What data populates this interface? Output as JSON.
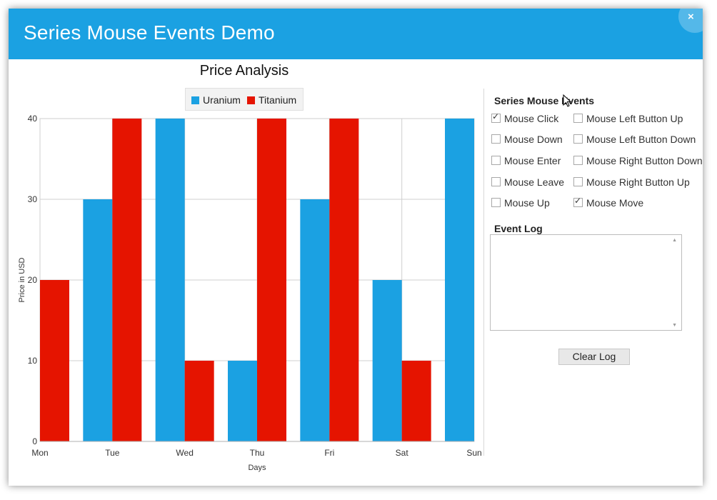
{
  "window": {
    "title": "Series Mouse Events Demo",
    "close_label": "×"
  },
  "chart_data": {
    "type": "bar",
    "title": "Price Analysis",
    "xlabel": "Days",
    "ylabel": "Price in USD",
    "categories": [
      "Mon",
      "Tue",
      "Wed",
      "Thu",
      "Fri",
      "Sat",
      "Sun"
    ],
    "series": [
      {
        "name": "Uranium",
        "color": "#1ba1e2",
        "values": [
          0,
          30,
          40,
          10,
          30,
          20,
          40
        ]
      },
      {
        "name": "Titanium",
        "color": "#e51400",
        "values": [
          20,
          40,
          10,
          40,
          40,
          10,
          0
        ]
      }
    ],
    "ylim": [
      0,
      40
    ],
    "yticks": [
      0,
      10,
      20,
      30,
      40
    ],
    "grid": true,
    "legend_position": "top"
  },
  "panel": {
    "events_label": "Series Mouse Events",
    "checkboxes": [
      {
        "label": "Mouse Click",
        "checked": true
      },
      {
        "label": "Mouse Down",
        "checked": false
      },
      {
        "label": "Mouse Enter",
        "checked": false
      },
      {
        "label": "Mouse Leave",
        "checked": false
      },
      {
        "label": "Mouse Up",
        "checked": false
      },
      {
        "label": "Mouse Left Button Up",
        "checked": false
      },
      {
        "label": "Mouse Left Button Down",
        "checked": false
      },
      {
        "label": "Mouse Right Button Down",
        "checked": false
      },
      {
        "label": "Mouse Right Button Up",
        "checked": false
      },
      {
        "label": "Mouse Move",
        "checked": true
      }
    ],
    "log_label": "Event Log",
    "log_text": "",
    "clear_label": "Clear Log"
  }
}
